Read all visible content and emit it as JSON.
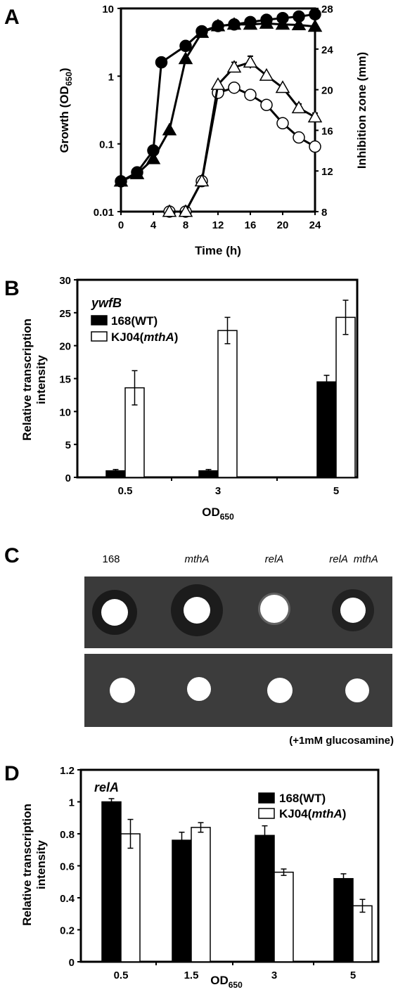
{
  "panels": {
    "A": {
      "letter": "A",
      "chart_data": {
        "type": "line",
        "xlabel": "Time (h)",
        "ylabel_left": "Growth  (OD",
        "ylabel_left_sub": "650",
        "ylabel_left_end": ")",
        "ylabel_right": "Inhibition zone (mm)",
        "x_ticks": [
          "0",
          "4",
          "8",
          "12",
          "16",
          "20",
          "24"
        ],
        "y_left_ticks": [
          "0.01",
          "0.1",
          "1",
          "10"
        ],
        "y_right_ticks": [
          "8",
          "12",
          "16",
          "20",
          "24",
          "28"
        ],
        "xlim": [
          0,
          24
        ],
        "ylim_left": [
          0.01,
          10
        ],
        "ylim_right": [
          8,
          28
        ],
        "log_scale_left": true,
        "series": [
          {
            "marker": "filled-circle",
            "axis": "left",
            "x": [
              0,
              2,
              4,
              5,
              8,
              10,
              12,
              14,
              16,
              18,
              20,
              22,
              24
            ],
            "y": [
              0.028,
              0.038,
              0.08,
              1.6,
              2.8,
              4.6,
              5.5,
              5.8,
              6.3,
              6.8,
              7.2,
              7.6,
              8.2
            ]
          },
          {
            "marker": "filled-triangle",
            "axis": "left",
            "x": [
              0,
              2,
              4,
              6,
              8,
              10,
              12,
              14,
              16,
              18,
              20,
              22,
              24
            ],
            "y": [
              0.028,
              0.036,
              0.06,
              0.16,
              1.8,
              4.4,
              5.5,
              5.8,
              5.8,
              6.0,
              5.8,
              5.7,
              5.4
            ]
          },
          {
            "marker": "open-circle",
            "axis": "right",
            "x": [
              6,
              8,
              10,
              12,
              14,
              16,
              18,
              20,
              22,
              24
            ],
            "y": [
              8,
              8,
              11,
              19.7,
              20.2,
              19.5,
              18.5,
              16.7,
              15.3,
              14.4
            ]
          },
          {
            "marker": "open-triangle",
            "axis": "right",
            "x": [
              6,
              8,
              10,
              12,
              14,
              16,
              18,
              20,
              22,
              24
            ],
            "y": [
              8,
              8,
              11,
              20.5,
              22.2,
              22.7,
              21.4,
              20.2,
              18.2,
              17.3
            ],
            "err": [
              0,
              0,
              0,
              0,
              0.5,
              0.6,
              0,
              0,
              0.4,
              0.4
            ]
          }
        ]
      }
    },
    "B": {
      "letter": "B",
      "chart_data": {
        "type": "bar",
        "annotation": "ywfB",
        "ylabel_line1": "Relative  transcription",
        "ylabel_line2": "intensity",
        "xlabel": "OD",
        "xlabel_sub": "650",
        "categories": [
          "0.5",
          "3",
          "5"
        ],
        "ylim": [
          0,
          30
        ],
        "y_ticks": [
          "0",
          "5",
          "10",
          "15",
          "20",
          "25",
          "30"
        ],
        "series": [
          {
            "name": "168(WT)",
            "fill": "#000000",
            "values": [
              1.0,
              1.0,
              14.5
            ],
            "err": [
              0.2,
              0.2,
              1.0
            ]
          },
          {
            "name_prefix": "KJ04(",
            "name_italic": "mthA",
            "name_suffix": ")",
            "fill": "#ffffff",
            "values": [
              13.6,
              22.3,
              24.3
            ],
            "err": [
              2.6,
              2.0,
              2.6
            ]
          }
        ]
      }
    },
    "C": {
      "letter": "C",
      "labels": [
        {
          "plain": "168",
          "italic": ""
        },
        {
          "plain": "",
          "italic": "mthA"
        },
        {
          "plain": "",
          "italic": "relA"
        },
        {
          "plain": "",
          "italic": "relA  mthA"
        }
      ],
      "caption": "(+1mM glucosamine)",
      "plate_color": "#3a3a3a"
    },
    "D": {
      "letter": "D",
      "chart_data": {
        "type": "bar",
        "annotation": "relA",
        "ylabel_line1": "Relative  transcription",
        "ylabel_line2": "intensity",
        "xlabel": "OD",
        "xlabel_sub": "650",
        "categories": [
          "0.5",
          "1.5",
          "3",
          "5"
        ],
        "ylim": [
          0,
          1.2
        ],
        "y_ticks": [
          "0",
          "0.2",
          "0.4",
          "0.6",
          "0.8",
          "1",
          "1.2"
        ],
        "series": [
          {
            "name": "168(WT)",
            "fill": "#000000",
            "values": [
              1.0,
              0.76,
              0.79,
              0.52
            ],
            "err": [
              0.02,
              0.05,
              0.06,
              0.03
            ]
          },
          {
            "name_prefix": "KJ04(",
            "name_italic": "mthA",
            "name_suffix": ")",
            "fill": "#ffffff",
            "values": [
              0.8,
              0.84,
              0.56,
              0.35
            ],
            "err": [
              0.09,
              0.03,
              0.02,
              0.04
            ]
          }
        ]
      }
    }
  }
}
